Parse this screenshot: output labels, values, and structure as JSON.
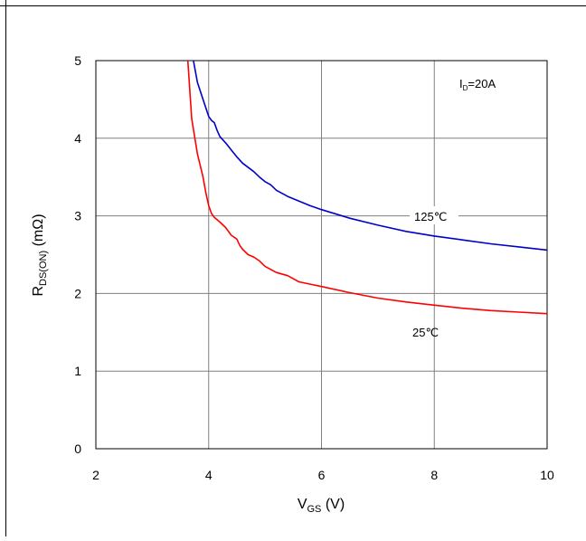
{
  "chart_data": {
    "type": "line",
    "xlabel": {
      "main": "V",
      "sub": "GS",
      "tail": " (V)"
    },
    "ylabel": {
      "main": "R",
      "sub": "DS(ON)",
      "tail": " (mΩ)"
    },
    "xlim": [
      2,
      10
    ],
    "ylim": [
      0,
      5
    ],
    "xticks": [
      2,
      4,
      6,
      8,
      10
    ],
    "yticks": [
      0,
      1,
      2,
      3,
      4,
      5
    ],
    "grid": true,
    "annotation": {
      "main": "I",
      "sub": "D",
      "tail": "=20A"
    },
    "series": [
      {
        "name": "125℃",
        "color": "#0000cc",
        "x": [
          3.73,
          3.8,
          3.9,
          4.0,
          4.05,
          4.1,
          4.15,
          4.2,
          4.3,
          4.4,
          4.5,
          4.6,
          4.8,
          4.9,
          5.0,
          5.1,
          5.2,
          5.4,
          5.6,
          5.8,
          6.0,
          6.5,
          7.0,
          7.5,
          8.0,
          8.5,
          9.0,
          9.5,
          10.0
        ],
        "y": [
          5.0,
          4.72,
          4.5,
          4.28,
          4.23,
          4.2,
          4.1,
          4.02,
          3.94,
          3.85,
          3.76,
          3.68,
          3.57,
          3.5,
          3.44,
          3.4,
          3.33,
          3.25,
          3.19,
          3.13,
          3.08,
          2.97,
          2.88,
          2.8,
          2.74,
          2.69,
          2.64,
          2.6,
          2.56
        ]
      },
      {
        "name": "25℃",
        "color": "#ff0000",
        "x": [
          3.63,
          3.7,
          3.8,
          3.9,
          3.95,
          4.0,
          4.05,
          4.1,
          4.2,
          4.3,
          4.4,
          4.5,
          4.55,
          4.6,
          4.7,
          4.8,
          4.9,
          5.0,
          5.2,
          5.4,
          5.5,
          5.6,
          5.8,
          6.0,
          6.5,
          7.0,
          7.5,
          8.0,
          8.5,
          9.0,
          9.5,
          10.0
        ],
        "y": [
          5.0,
          4.25,
          3.8,
          3.5,
          3.3,
          3.13,
          3.03,
          2.98,
          2.92,
          2.85,
          2.75,
          2.7,
          2.62,
          2.57,
          2.5,
          2.47,
          2.42,
          2.35,
          2.27,
          2.23,
          2.19,
          2.15,
          2.12,
          2.09,
          2.01,
          1.94,
          1.89,
          1.85,
          1.81,
          1.78,
          1.76,
          1.74
        ]
      }
    ]
  },
  "labels": {
    "series_125": "125℃",
    "series_25": "25℃"
  }
}
